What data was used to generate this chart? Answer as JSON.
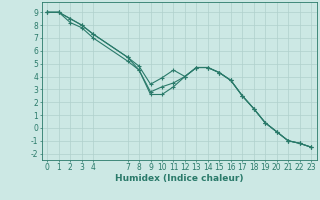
{
  "xlabel": "Humidex (Indice chaleur)",
  "xlim": [
    -0.5,
    23.5
  ],
  "ylim": [
    -2.5,
    9.8
  ],
  "y_ticks": [
    -2,
    -1,
    0,
    1,
    2,
    3,
    4,
    5,
    6,
    7,
    8,
    9
  ],
  "x_ticks": [
    0,
    1,
    2,
    3,
    4,
    7,
    8,
    9,
    10,
    11,
    12,
    13,
    14,
    15,
    16,
    17,
    18,
    19,
    20,
    21,
    22,
    23
  ],
  "background_color": "#cce8e4",
  "grid_color": "#b0d0cc",
  "line_color": "#2a7a6a",
  "font_size": 5.5,
  "label_fontsize": 6.5,
  "line1_x": [
    0,
    1,
    2,
    3,
    4,
    7,
    8,
    9,
    10,
    11,
    12,
    13,
    14,
    15,
    16,
    17,
    18,
    19,
    20,
    21,
    22,
    23
  ],
  "line1_y": [
    9.0,
    9.0,
    8.5,
    8.0,
    7.3,
    5.5,
    4.8,
    3.4,
    3.9,
    4.5,
    4.0,
    4.7,
    4.7,
    4.3,
    3.7,
    2.5,
    1.5,
    0.4,
    -0.3,
    -1.0,
    -1.2,
    -1.5
  ],
  "line2_x": [
    0,
    1,
    2,
    3,
    4,
    7,
    8,
    9,
    10,
    11,
    12,
    13,
    14,
    15,
    16,
    17,
    18,
    19,
    20,
    21,
    22,
    23
  ],
  "line2_y": [
    9.0,
    9.0,
    8.5,
    8.0,
    7.3,
    5.5,
    4.5,
    2.6,
    2.6,
    3.2,
    4.0,
    4.7,
    4.7,
    4.3,
    3.7,
    2.5,
    1.5,
    0.4,
    -0.3,
    -1.0,
    -1.2,
    -1.5
  ],
  "line3_x": [
    0,
    1,
    2,
    3,
    4,
    7,
    8,
    9,
    10,
    11,
    12,
    13,
    14,
    15,
    16,
    17,
    18,
    19,
    20,
    21,
    22,
    23
  ],
  "line3_y": [
    9.0,
    9.0,
    8.2,
    7.8,
    7.0,
    5.2,
    4.5,
    2.8,
    3.2,
    3.5,
    4.0,
    4.7,
    4.7,
    4.3,
    3.7,
    2.5,
    1.5,
    0.4,
    -0.3,
    -1.0,
    -1.2,
    -1.5
  ]
}
